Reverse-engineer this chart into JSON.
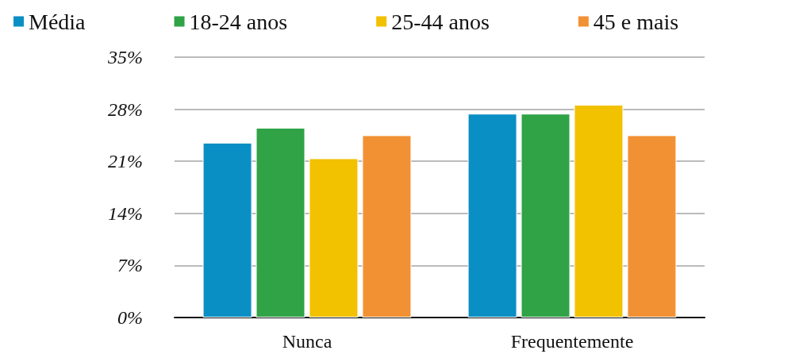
{
  "chart_data": {
    "type": "bar",
    "categories": [
      "Nunca",
      "Frequentemente"
    ],
    "series": [
      {
        "name": "Média",
        "color": "#0a8fc4",
        "values": [
          23.5,
          27.4
        ]
      },
      {
        "name": "18-24 anos",
        "color": "#2fa346",
        "values": [
          25.5,
          27.4
        ]
      },
      {
        "name": "25-44 anos",
        "color": "#f2c100",
        "values": [
          21.4,
          28.6
        ]
      },
      {
        "name": "45 e mais",
        "color": "#f29133",
        "values": [
          24.5,
          24.5
        ]
      }
    ],
    "ylim": [
      0,
      35
    ],
    "yticks": [
      {
        "value": 0,
        "label": "0%"
      },
      {
        "value": 7,
        "label": "7%"
      },
      {
        "value": 14,
        "label": "14%"
      },
      {
        "value": 21,
        "label": "21%"
      },
      {
        "value": 28,
        "label": "28%"
      },
      {
        "value": 35,
        "label": "35%"
      }
    ],
    "grid": "y",
    "legend": "top"
  }
}
